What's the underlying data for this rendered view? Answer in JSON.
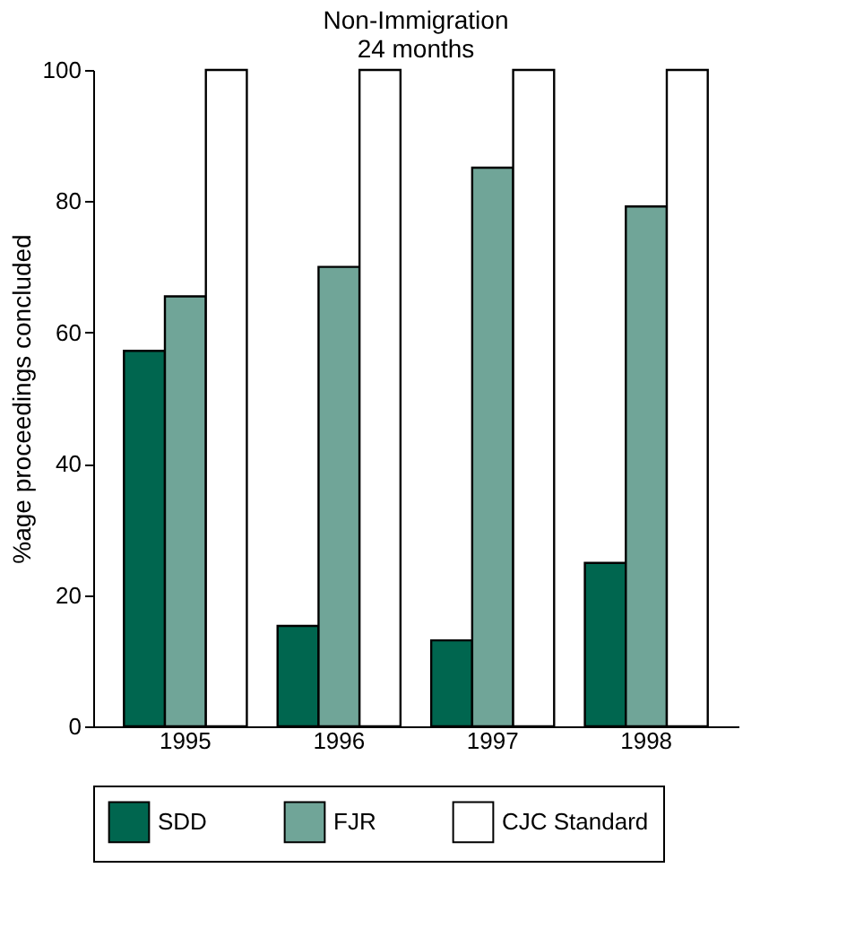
{
  "chart_data": {
    "type": "bar",
    "title": [
      "Non-Immigration",
      "24 months"
    ],
    "ylabel": "%age proceedings concluded",
    "categories": [
      "1995",
      "1996",
      "1997",
      "1998"
    ],
    "series": [
      {
        "name": "SDD",
        "color": "#00664f",
        "values": [
          57.2,
          15.3,
          13.1,
          24.9
        ]
      },
      {
        "name": "FJR",
        "color": "#70a598",
        "values": [
          65.5,
          70.0,
          85.1,
          79.2
        ]
      },
      {
        "name": "CJC Standard",
        "color": "#ffffff",
        "values": [
          100,
          100,
          100,
          100
        ]
      }
    ],
    "ylim": [
      0,
      100
    ],
    "yticks": [
      0,
      20,
      40,
      60,
      80,
      100
    ],
    "grid": false,
    "legend": "bottom"
  }
}
